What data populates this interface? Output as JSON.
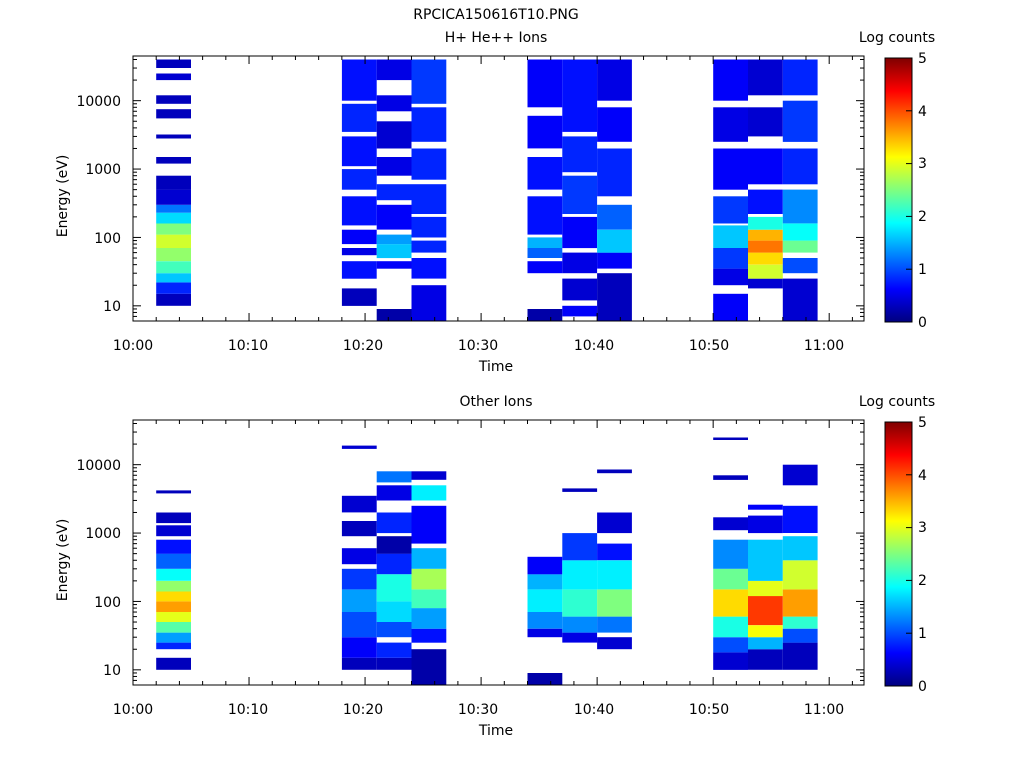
{
  "figure_title": "RPCICA150616T10.PNG",
  "chart_data": [
    {
      "type": "heatmap",
      "title": "H+ He++ Ions",
      "xlabel": "Time",
      "ylabel": "Energy (eV)",
      "yscale": "log",
      "ylim": [
        6,
        45000
      ],
      "xlim": [
        "10:00",
        "11:03"
      ],
      "xticks": [
        "10:00",
        "10:10",
        "10:20",
        "10:30",
        "10:40",
        "10:50",
        "11:00"
      ],
      "yticks": [
        "10",
        "100",
        "1000",
        "10000"
      ],
      "colorbar": {
        "label": "Log counts",
        "range": [
          0,
          5
        ],
        "ticks": [
          "0",
          "1",
          "2",
          "3",
          "4",
          "5"
        ]
      },
      "columns": [
        {
          "t0": "10:02",
          "t1": "10:05",
          "bins": [
            [
              "10",
              "15",
              0.3
            ],
            [
              "15",
              "22",
              0.8
            ],
            [
              "22",
              "30",
              1.6
            ],
            [
              "30",
              "45",
              2.2
            ],
            [
              "45",
              "70",
              2.6
            ],
            [
              "70",
              "110",
              2.9
            ],
            [
              "110",
              "160",
              2.5
            ],
            [
              "160",
              "230",
              1.7
            ],
            [
              "230",
              "300",
              1.2
            ],
            [
              "300",
              "500",
              0.4
            ],
            [
              "500",
              "800",
              0.3
            ],
            [
              "1200",
              "1500",
              0.3
            ],
            [
              "2800",
              "3200",
              0.3
            ],
            [
              "5500",
              "7500",
              0.3
            ],
            [
              "9000",
              "12000",
              0.3
            ],
            [
              "20000",
              "25000",
              0.4
            ],
            [
              "30000",
              "40000",
              0.3
            ]
          ]
        },
        {
          "t0": "10:18",
          "t1": "10:21",
          "bins": [
            [
              "10",
              "18",
              0.3
            ],
            [
              "25",
              "45",
              0.7
            ],
            [
              "55",
              "70",
              0.5
            ],
            [
              "80",
              "130",
              0.6
            ],
            [
              "150",
              "400",
              0.7
            ],
            [
              "500",
              "1000",
              0.8
            ],
            [
              "1100",
              "3000",
              0.7
            ],
            [
              "3500",
              "9000",
              0.8
            ],
            [
              "10000",
              "40000",
              0.7
            ]
          ]
        },
        {
          "t0": "10:21",
          "t1": "10:24",
          "bins": [
            [
              "6",
              "9",
              0.2
            ],
            [
              "35",
              "45",
              0.6
            ],
            [
              "50",
              "80",
              1.6
            ],
            [
              "80",
              "110",
              1.4
            ],
            [
              "130",
              "300",
              0.6
            ],
            [
              "350",
              "600",
              0.8
            ],
            [
              "800",
              "1500",
              0.5
            ],
            [
              "2000",
              "5000",
              0.4
            ],
            [
              "7000",
              "12000",
              0.5
            ],
            [
              "20000",
              "40000",
              0.5
            ]
          ]
        },
        {
          "t0": "10:24",
          "t1": "10:27",
          "bins": [
            [
              "6",
              "20",
              0.5
            ],
            [
              "25",
              "50",
              0.7
            ],
            [
              "60",
              "90",
              0.8
            ],
            [
              "100",
              "200",
              0.8
            ],
            [
              "220",
              "600",
              0.8
            ],
            [
              "700",
              "2000",
              0.8
            ],
            [
              "2500",
              "8000",
              0.8
            ],
            [
              "9000",
              "40000",
              0.9
            ]
          ]
        },
        {
          "t0": "10:34",
          "t1": "10:37",
          "bins": [
            [
              "6",
              "9",
              0.2
            ],
            [
              "30",
              "45",
              0.6
            ],
            [
              "50",
              "70",
              1.1
            ],
            [
              "70",
              "100",
              1.5
            ],
            [
              "110",
              "400",
              0.7
            ],
            [
              "500",
              "1500",
              0.7
            ],
            [
              "2000",
              "6000",
              0.6
            ],
            [
              "8000",
              "40000",
              0.6
            ]
          ]
        },
        {
          "t0": "10:37",
          "t1": "10:40",
          "bins": [
            [
              "7",
              "10",
              0.6
            ],
            [
              "12",
              "25",
              0.4
            ],
            [
              "30",
              "60",
              0.5
            ],
            [
              "70",
              "200",
              0.6
            ],
            [
              "220",
              "800",
              0.9
            ],
            [
              "900",
              "3000",
              0.8
            ],
            [
              "3500",
              "40000",
              0.7
            ]
          ]
        },
        {
          "t0": "10:40",
          "t1": "10:43",
          "bins": [
            [
              "6",
              "30",
              0.3
            ],
            [
              "35",
              "60",
              0.6
            ],
            [
              "60",
              "130",
              1.6
            ],
            [
              "130",
              "300",
              1.1
            ],
            [
              "400",
              "2000",
              0.8
            ],
            [
              "2500",
              "8000",
              0.6
            ],
            [
              "10000",
              "40000",
              0.5
            ]
          ]
        },
        {
          "t0": "10:50",
          "t1": "10:53",
          "bins": [
            [
              "6",
              "15",
              0.6
            ],
            [
              "20",
              "35",
              0.5
            ],
            [
              "35",
              "70",
              0.9
            ],
            [
              "70",
              "150",
              1.6
            ],
            [
              "160",
              "400",
              0.9
            ],
            [
              "500",
              "2000",
              0.6
            ],
            [
              "2500",
              "8000",
              0.5
            ],
            [
              "10000",
              "40000",
              0.6
            ]
          ]
        },
        {
          "t0": "10:53",
          "t1": "10:56",
          "bins": [
            [
              "18",
              "25",
              0.4
            ],
            [
              "25",
              "40",
              2.9
            ],
            [
              "40",
              "60",
              3.3
            ],
            [
              "60",
              "90",
              3.8
            ],
            [
              "90",
              "130",
              3.5
            ],
            [
              "130",
              "200",
              2.0
            ],
            [
              "220",
              "500",
              0.7
            ],
            [
              "600",
              "2000",
              0.6
            ],
            [
              "3000",
              "8000",
              0.4
            ],
            [
              "12000",
              "40000",
              0.4
            ]
          ]
        },
        {
          "t0": "10:56",
          "t1": "10:59",
          "bins": [
            [
              "6",
              "25",
              0.4
            ],
            [
              "30",
              "50",
              1.0
            ],
            [
              "60",
              "90",
              2.4
            ],
            [
              "90",
              "160",
              1.9
            ],
            [
              "160",
              "500",
              1.3
            ],
            [
              "600",
              "2000",
              0.8
            ],
            [
              "2500",
              "10000",
              0.9
            ],
            [
              "12000",
              "40000",
              0.8
            ]
          ]
        }
      ]
    },
    {
      "type": "heatmap",
      "title": "Other Ions",
      "xlabel": "Time",
      "ylabel": "Energy (eV)",
      "yscale": "log",
      "ylim": [
        6,
        45000
      ],
      "xlim": [
        "10:00",
        "11:03"
      ],
      "xticks": [
        "10:00",
        "10:10",
        "10:20",
        "10:30",
        "10:40",
        "10:50",
        "11:00"
      ],
      "yticks": [
        "10",
        "100",
        "1000",
        "10000"
      ],
      "colorbar": {
        "label": "Log counts",
        "range": [
          0,
          5
        ],
        "ticks": [
          "0",
          "1",
          "2",
          "3",
          "4",
          "5"
        ]
      },
      "columns": [
        {
          "t0": "10:02",
          "t1": "10:05",
          "bins": [
            [
              "10",
              "15",
              0.3
            ],
            [
              "20",
              "25",
              0.8
            ],
            [
              "25",
              "35",
              1.4
            ],
            [
              "35",
              "50",
              2.3
            ],
            [
              "50",
              "70",
              3.0
            ],
            [
              "70",
              "100",
              3.6
            ],
            [
              "100",
              "140",
              3.3
            ],
            [
              "140",
              "200",
              2.6
            ],
            [
              "200",
              "300",
              1.9
            ],
            [
              "300",
              "500",
              1.1
            ],
            [
              "500",
              "800",
              0.7
            ],
            [
              "900",
              "1300",
              0.4
            ],
            [
              "1400",
              "2000",
              0.3
            ],
            [
              "3800",
              "4200",
              0.3
            ]
          ]
        },
        {
          "t0": "10:18",
          "t1": "10:21",
          "bins": [
            [
              "10",
              "15",
              0.3
            ],
            [
              "15",
              "30",
              0.6
            ],
            [
              "30",
              "70",
              1.0
            ],
            [
              "70",
              "150",
              1.4
            ],
            [
              "150",
              "300",
              0.9
            ],
            [
              "350",
              "600",
              0.5
            ],
            [
              "900",
              "1500",
              0.3
            ],
            [
              "2000",
              "3500",
              0.4
            ],
            [
              "17000",
              "19000",
              0.4
            ]
          ]
        },
        {
          "t0": "10:21",
          "t1": "10:24",
          "bins": [
            [
              "10",
              "15",
              0.3
            ],
            [
              "15",
              "25",
              0.8
            ],
            [
              "30",
              "50",
              1.0
            ],
            [
              "50",
              "100",
              1.7
            ],
            [
              "100",
              "250",
              2.0
            ],
            [
              "250",
              "500",
              0.8
            ],
            [
              "500",
              "900",
              0.2
            ],
            [
              "1000",
              "2000",
              0.8
            ],
            [
              "3000",
              "5000",
              0.5
            ],
            [
              "5500",
              "8000",
              1.2
            ]
          ]
        },
        {
          "t0": "10:24",
          "t1": "10:27",
          "bins": [
            [
              "6",
              "20",
              0.2
            ],
            [
              "25",
              "40",
              0.7
            ],
            [
              "40",
              "80",
              1.4
            ],
            [
              "80",
              "150",
              2.2
            ],
            [
              "150",
              "300",
              2.7
            ],
            [
              "300",
              "600",
              1.5
            ],
            [
              "700",
              "2500",
              0.6
            ],
            [
              "3000",
              "5000",
              1.8
            ],
            [
              "6000",
              "8000",
              0.4
            ]
          ]
        },
        {
          "t0": "10:34",
          "t1": "10:37",
          "bins": [
            [
              "6",
              "9",
              0.2
            ],
            [
              "30",
              "40",
              0.5
            ],
            [
              "40",
              "70",
              1.3
            ],
            [
              "70",
              "150",
              1.8
            ],
            [
              "150",
              "250",
              1.5
            ],
            [
              "250",
              "450",
              0.6
            ]
          ]
        },
        {
          "t0": "10:37",
          "t1": "10:40",
          "bins": [
            [
              "25",
              "35",
              0.5
            ],
            [
              "35",
              "60",
              1.3
            ],
            [
              "60",
              "150",
              2.1
            ],
            [
              "150",
              "400",
              1.8
            ],
            [
              "400",
              "1000",
              0.9
            ],
            [
              "4000",
              "4500",
              0.3
            ]
          ]
        },
        {
          "t0": "10:40",
          "t1": "10:43",
          "bins": [
            [
              "20",
              "30",
              0.4
            ],
            [
              "35",
              "60",
              1.2
            ],
            [
              "60",
              "150",
              2.5
            ],
            [
              "150",
              "400",
              1.8
            ],
            [
              "400",
              "700",
              0.7
            ],
            [
              "1000",
              "2000",
              0.4
            ],
            [
              "7500",
              "8500",
              0.3
            ]
          ]
        },
        {
          "t0": "10:50",
          "t1": "10:53",
          "bins": [
            [
              "10",
              "18",
              0.4
            ],
            [
              "18",
              "30",
              1.0
            ],
            [
              "30",
              "60",
              2.0
            ],
            [
              "60",
              "150",
              3.3
            ],
            [
              "150",
              "300",
              2.4
            ],
            [
              "300",
              "800",
              1.3
            ],
            [
              "1100",
              "1700",
              0.4
            ],
            [
              "6000",
              "7000",
              0.3
            ],
            [
              "23000",
              "25000",
              0.3
            ]
          ]
        },
        {
          "t0": "10:53",
          "t1": "10:56",
          "bins": [
            [
              "10",
              "20",
              0.3
            ],
            [
              "20",
              "30",
              1.5
            ],
            [
              "30",
              "45",
              3.1
            ],
            [
              "45",
              "120",
              4.1
            ],
            [
              "120",
              "200",
              3.0
            ],
            [
              "200",
              "800",
              1.6
            ],
            [
              "1000",
              "1800",
              0.5
            ],
            [
              "2200",
              "2600",
              0.6
            ]
          ]
        },
        {
          "t0": "10:56",
          "t1": "10:59",
          "bins": [
            [
              "10",
              "25",
              0.3
            ],
            [
              "25",
              "40",
              1.0
            ],
            [
              "40",
              "60",
              2.1
            ],
            [
              "60",
              "150",
              3.6
            ],
            [
              "150",
              "400",
              2.9
            ],
            [
              "400",
              "900",
              1.6
            ],
            [
              "1000",
              "2500",
              0.7
            ],
            [
              "5000",
              "10000",
              0.4
            ]
          ]
        }
      ]
    }
  ]
}
